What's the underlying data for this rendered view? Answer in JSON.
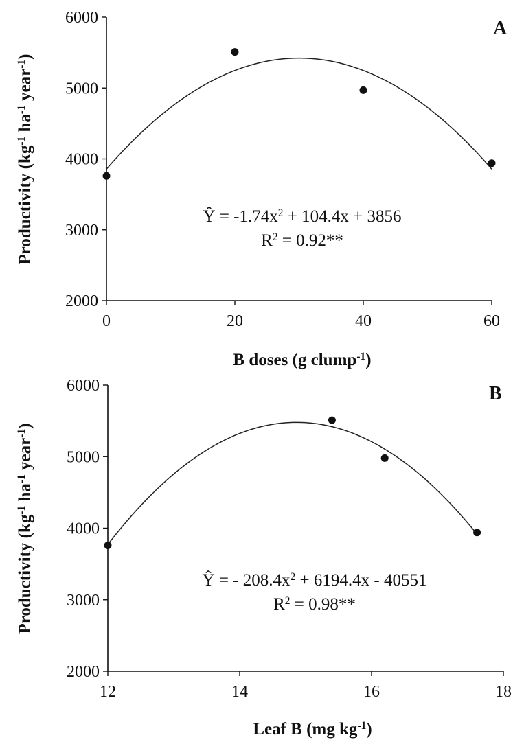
{
  "chart_data": [
    {
      "type": "scatter",
      "panel_label": "A",
      "xlabel": "B doses (g clump",
      "xlabel_sup": "-1",
      "xlabel_end": ")",
      "ylabel_parts": [
        "Productivity (kg",
        "-1",
        " ha",
        "-1",
        " year",
        "-1",
        ")"
      ],
      "xlim": [
        0,
        60
      ],
      "ylim": [
        2000,
        6000
      ],
      "xticks": [
        0,
        20,
        40,
        60
      ],
      "yticks": [
        2000,
        3000,
        4000,
        5000,
        6000
      ],
      "points": {
        "x": [
          0,
          20,
          40,
          60
        ],
        "y": [
          3760,
          5510,
          4970,
          3940
        ]
      },
      "fit": {
        "a": -1.74,
        "b": 104.4,
        "c": 3856,
        "xmin": 0,
        "xmax": 60
      },
      "equation_parts": [
        "Ŷ = -1.74x",
        "2",
        " + 104.4x + 3856"
      ],
      "r2_parts": [
        "R",
        "2",
        " = 0.92**"
      ]
    },
    {
      "type": "scatter",
      "panel_label": "B",
      "xlabel": "Leaf B (mg kg",
      "xlabel_sup": "-1",
      "xlabel_end": ")",
      "ylabel_parts": [
        "Productivity (kg",
        "-1",
        " ha",
        "-1",
        " year",
        "-1",
        ")"
      ],
      "xlim": [
        12,
        18
      ],
      "ylim": [
        2000,
        6000
      ],
      "xticks": [
        12,
        14,
        16,
        18
      ],
      "yticks": [
        2000,
        3000,
        4000,
        5000,
        6000
      ],
      "points": {
        "x": [
          12,
          15.4,
          16.2,
          17.6
        ],
        "y": [
          3760,
          5510,
          4980,
          3940
        ]
      },
      "fit": {
        "a": -208.4,
        "b": 6194.4,
        "c": -40551,
        "xmin": 12,
        "xmax": 17.6
      },
      "equation_parts": [
        "Ŷ = - 208.4x",
        "2",
        " + 6194.4x - 40551"
      ],
      "r2_parts": [
        "R",
        "2",
        " = 0.98**"
      ]
    }
  ]
}
